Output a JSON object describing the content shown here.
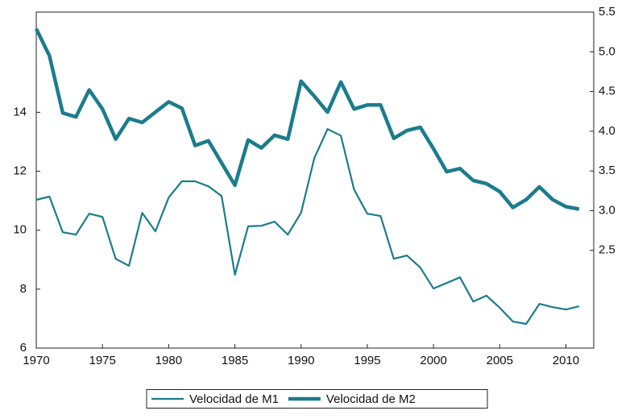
{
  "chart_data": {
    "type": "line",
    "x": [
      1970,
      1971,
      1972,
      1973,
      1974,
      1975,
      1976,
      1977,
      1978,
      1979,
      1980,
      1981,
      1982,
      1983,
      1984,
      1985,
      1986,
      1987,
      1988,
      1989,
      1990,
      1991,
      1992,
      1993,
      1994,
      1995,
      1996,
      1997,
      1998,
      1999,
      2000,
      2001,
      2002,
      2003,
      2004,
      2005,
      2006,
      2007,
      2008,
      2009,
      2010,
      2011
    ],
    "xlim": [
      1970,
      2012.1
    ],
    "xticks": [
      1970,
      1975,
      1980,
      1985,
      1990,
      1995,
      2000,
      2005,
      2010
    ],
    "ylim": [
      6,
      17.4
    ],
    "yticks": [
      6,
      8,
      10,
      12,
      14
    ],
    "y2lim": [
      1.27,
      5.5
    ],
    "y2ticks": [
      2.5,
      {
        "value": 3.0,
        "label": "3.0"
      },
      3.5,
      {
        "value": 4.0,
        "label": "4.0"
      },
      4.5,
      {
        "value": 5.0,
        "label": "5.0"
      },
      5.5
    ],
    "legend": "bottom",
    "series": [
      {
        "name": "Velocidad de M1",
        "color": "#1b7c8c",
        "axis": "y",
        "values": [
          11.03,
          11.14,
          9.93,
          9.85,
          10.56,
          10.45,
          9.03,
          8.79,
          10.59,
          9.96,
          11.11,
          11.66,
          11.66,
          11.49,
          11.16,
          8.49,
          10.13,
          10.15,
          10.29,
          9.85,
          10.59,
          12.45,
          13.43,
          13.21,
          11.38,
          10.56,
          10.48,
          9.03,
          9.14,
          8.73,
          8.02,
          8.21,
          8.4,
          7.58,
          7.78,
          7.37,
          6.9,
          6.82,
          7.5,
          7.39,
          7.31,
          7.42
        ]
      },
      {
        "name": "Velocidad de M2",
        "color": "#1b7c8c",
        "axis": "y2",
        "values": [
          5.29,
          4.95,
          4.23,
          4.18,
          4.52,
          4.28,
          3.9,
          4.16,
          4.11,
          4.24,
          4.37,
          4.29,
          3.82,
          3.88,
          3.6,
          3.32,
          3.89,
          3.79,
          3.95,
          3.9,
          4.63,
          4.44,
          4.24,
          4.62,
          4.28,
          4.33,
          4.33,
          3.91,
          4.01,
          4.05,
          3.78,
          3.49,
          3.53,
          3.38,
          3.34,
          3.24,
          3.04,
          3.14,
          3.3,
          3.14,
          3.05,
          3.02
        ]
      }
    ]
  }
}
